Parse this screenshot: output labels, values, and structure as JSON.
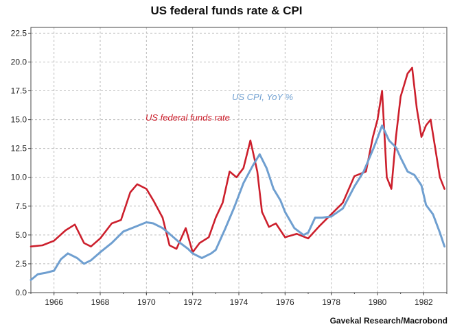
{
  "chart_data": {
    "type": "line",
    "title": "US federal funds rate & CPI",
    "source": "Gavekal Research/Macrobond",
    "xlim": [
      1965,
      1983
    ],
    "ylim": [
      0,
      23
    ],
    "x_ticks": [
      "1966",
      "1968",
      "1970",
      "1972",
      "1974",
      "1976",
      "1978",
      "1980",
      "1982"
    ],
    "y_ticks": [
      "0.0",
      "2.5",
      "5.0",
      "7.5",
      "10.0",
      "12.5",
      "15.0",
      "17.5",
      "20.0",
      "22.5"
    ],
    "grid": true,
    "series": [
      {
        "name": "US federal funds rate",
        "color": "#cc1f2c",
        "x": [
          1965.0,
          1965.5,
          1966.0,
          1966.5,
          1966.9,
          1967.3,
          1967.6,
          1968.0,
          1968.5,
          1968.9,
          1969.3,
          1969.6,
          1970.0,
          1970.3,
          1970.7,
          1971.0,
          1971.3,
          1971.7,
          1972.0,
          1972.3,
          1972.7,
          1973.0,
          1973.3,
          1973.6,
          1973.9,
          1974.2,
          1974.5,
          1974.8,
          1975.0,
          1975.3,
          1975.6,
          1976.0,
          1976.5,
          1977.0,
          1977.5,
          1978.0,
          1978.5,
          1979.0,
          1979.5,
          1979.8,
          1980.0,
          1980.2,
          1980.4,
          1980.6,
          1980.8,
          1981.0,
          1981.3,
          1981.5,
          1981.7,
          1981.9,
          1982.1,
          1982.3,
          1982.5,
          1982.7,
          1982.9
        ],
        "values": [
          4.0,
          4.1,
          4.5,
          5.4,
          5.9,
          4.3,
          4.0,
          4.7,
          6.0,
          6.3,
          8.7,
          9.4,
          9.0,
          8.0,
          6.5,
          4.1,
          3.8,
          5.6,
          3.5,
          4.3,
          4.8,
          6.5,
          7.8,
          10.5,
          10.0,
          10.8,
          13.2,
          10.5,
          7.0,
          5.7,
          6.0,
          4.8,
          5.1,
          4.7,
          5.8,
          6.8,
          7.8,
          10.1,
          10.5,
          13.5,
          15.0,
          17.5,
          10.0,
          9.0,
          13.5,
          17.0,
          19.0,
          19.5,
          16.0,
          13.5,
          14.5,
          15.0,
          12.5,
          10.0,
          9.0
        ]
      },
      {
        "name": "US CPI, YoY %",
        "color": "#6f9fd0",
        "x": [
          1965.0,
          1965.3,
          1965.6,
          1966.0,
          1966.3,
          1966.6,
          1967.0,
          1967.3,
          1967.6,
          1968.0,
          1968.5,
          1969.0,
          1969.5,
          1970.0,
          1970.3,
          1970.7,
          1971.0,
          1971.4,
          1971.8,
          1972.0,
          1972.4,
          1972.8,
          1973.0,
          1973.4,
          1973.8,
          1974.2,
          1974.6,
          1974.9,
          1975.2,
          1975.5,
          1975.8,
          1976.0,
          1976.4,
          1976.8,
          1977.0,
          1977.3,
          1977.6,
          1978.0,
          1978.5,
          1979.0,
          1979.4,
          1979.8,
          1980.0,
          1980.2,
          1980.5,
          1980.8,
          1981.0,
          1981.3,
          1981.6,
          1981.9,
          1982.1,
          1982.4,
          1982.7,
          1982.9
        ],
        "values": [
          1.1,
          1.6,
          1.7,
          1.9,
          2.9,
          3.4,
          3.0,
          2.5,
          2.8,
          3.5,
          4.3,
          5.3,
          5.7,
          6.1,
          6.0,
          5.6,
          5.1,
          4.4,
          3.8,
          3.4,
          3.0,
          3.4,
          3.7,
          5.5,
          7.4,
          9.5,
          11.0,
          12.0,
          10.8,
          9.0,
          8.0,
          7.0,
          5.6,
          5.0,
          5.2,
          6.5,
          6.5,
          6.6,
          7.3,
          9.2,
          10.5,
          12.4,
          13.4,
          14.5,
          13.2,
          12.6,
          11.7,
          10.5,
          10.2,
          9.3,
          7.6,
          6.8,
          5.2,
          4.0
        ]
      }
    ],
    "annotations": [
      {
        "text": "US federal funds rate",
        "color": "#cc1f2c"
      },
      {
        "text": "US CPI, YoY %",
        "color": "#6f9fd0"
      }
    ]
  }
}
